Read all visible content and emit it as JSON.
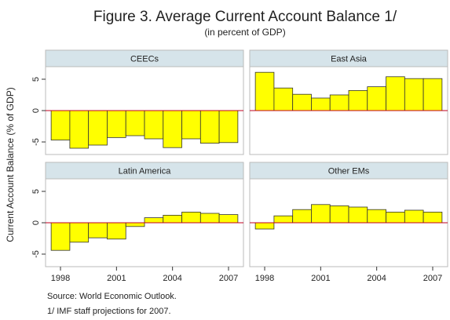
{
  "figure": {
    "title": "Figure 3. Average Current Account Balance 1/",
    "subtitle": "(in percent of GDP)",
    "y_label": "Current Account Balance (% of GDP)",
    "notes": [
      "Source: World Economic Outlook.",
      "1/ IMF staff projections for 2007."
    ]
  },
  "chart_data": [
    {
      "type": "bar",
      "title": "CEECs",
      "color": "#ffff00",
      "x": [
        1998,
        1999,
        2000,
        2001,
        2002,
        2003,
        2004,
        2005,
        2006,
        2007
      ],
      "values": [
        -4.7,
        -6.0,
        -5.5,
        -4.3,
        -4.0,
        -4.5,
        -5.9,
        -4.5,
        -5.2,
        -5.1
      ],
      "xlim": [
        1997.2,
        2007.8
      ],
      "ylim": [
        -7,
        7
      ],
      "yticks": [
        -5,
        0,
        5
      ]
    },
    {
      "type": "bar",
      "title": "East Asia",
      "color": "#ffff00",
      "x": [
        1998,
        1999,
        2000,
        2001,
        2002,
        2003,
        2004,
        2005,
        2006,
        2007
      ],
      "values": [
        6.1,
        3.6,
        2.6,
        2.0,
        2.5,
        3.2,
        3.8,
        5.4,
        5.1,
        5.1
      ],
      "xlim": [
        1997.2,
        2007.8
      ],
      "ylim": [
        -7,
        7
      ]
    },
    {
      "type": "bar",
      "title": "Latin America",
      "color": "#ffff00",
      "x": [
        1998,
        1999,
        2000,
        2001,
        2002,
        2003,
        2004,
        2005,
        2006,
        2007
      ],
      "values": [
        -4.4,
        -3.1,
        -2.4,
        -2.6,
        -0.6,
        0.8,
        1.2,
        1.7,
        1.5,
        1.3
      ],
      "xlim": [
        1997.2,
        2007.8
      ],
      "ylim": [
        -7,
        7
      ],
      "yticks": [
        -5,
        0,
        5
      ],
      "xticks": [
        1998,
        2001,
        2004,
        2007
      ]
    },
    {
      "type": "bar",
      "title": "Other EMs",
      "color": "#ffff00",
      "x": [
        1998,
        1999,
        2000,
        2001,
        2002,
        2003,
        2004,
        2005,
        2006,
        2007
      ],
      "values": [
        -1.0,
        1.1,
        2.1,
        2.9,
        2.7,
        2.5,
        2.1,
        1.7,
        2.0,
        1.7
      ],
      "xlim": [
        1997.2,
        2007.8
      ],
      "ylim": [
        -7,
        7
      ],
      "xticks": [
        1998,
        2001,
        2004,
        2007
      ]
    }
  ]
}
